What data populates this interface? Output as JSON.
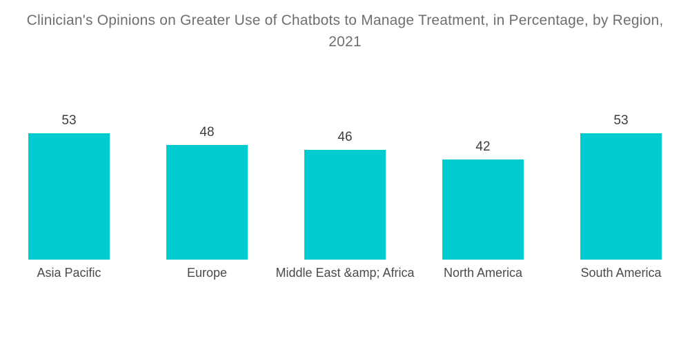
{
  "chart_data": {
    "type": "bar",
    "title": "Clinician's Opinions on Greater Use of Chatbots to Manage Treatment, in Percentage, by Region, 2021",
    "categories": [
      "Asia Pacific",
      "Europe",
      "Middle East &amp; Africa",
      "North America",
      "South America"
    ],
    "values": [
      53,
      48,
      46,
      42,
      53
    ],
    "xlabel": "",
    "ylabel": "",
    "ylim": [
      0,
      60
    ],
    "grid": false,
    "legend": false,
    "data_labels": "above bars",
    "bar_color": "#00cbd1",
    "title_color": "#6f6f6f",
    "value_label_color": "#3d3d3d",
    "category_label_color": "#4a4a4a",
    "background_color": "#ffffff"
  }
}
